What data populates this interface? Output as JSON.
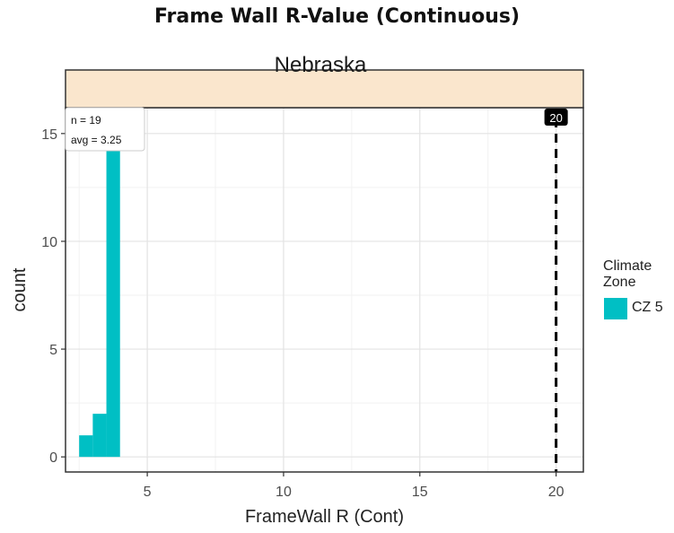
{
  "chart_data": {
    "type": "bar",
    "title": "Frame Wall R-Value (Continuous)",
    "facet_label": "Nebraska",
    "xlabel": "FrameWall R (Cont)",
    "ylabel": "count",
    "x_ticks": [
      5,
      10,
      15,
      20
    ],
    "y_ticks": [
      0,
      5,
      10,
      15
    ],
    "xlim": [
      2.0,
      21.0
    ],
    "ylim": [
      -0.7,
      16.2
    ],
    "grid": true,
    "bins": [
      {
        "x_start": 2.5,
        "x_end": 3.0,
        "count": 1
      },
      {
        "x_start": 3.0,
        "x_end": 3.5,
        "count": 2
      },
      {
        "x_start": 3.5,
        "x_end": 4.0,
        "count": 15
      }
    ],
    "annotation": {
      "n_text": "n = 19",
      "avg_text": "avg = 3.25"
    },
    "reference_line": {
      "x": 20,
      "label": "20"
    },
    "legend": {
      "title_line1": "Climate",
      "title_line2": "Zone",
      "placement": "right",
      "items": [
        {
          "label": "CZ 5",
          "color": "#00bfc4"
        }
      ]
    },
    "colors": {
      "bar": "#00bfc4",
      "strip": "#fae6cd",
      "ref_line": "#000000"
    }
  }
}
